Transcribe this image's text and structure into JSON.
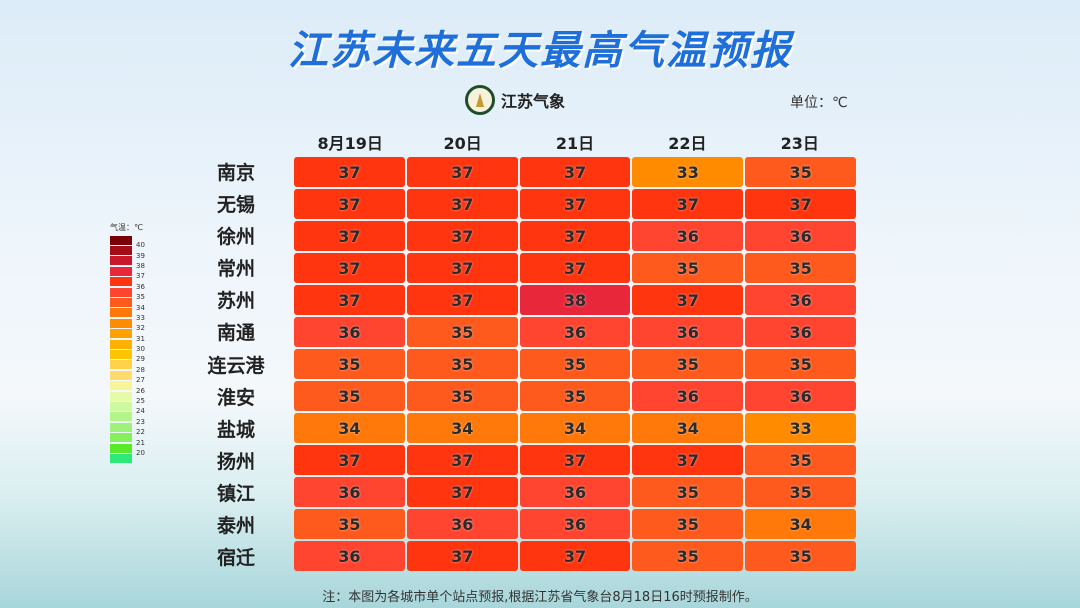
{
  "title": "江苏未来五天最高气温预报",
  "logo_text": "江苏气象",
  "unit": "单位：℃",
  "footer": "注：本图为各城市单个站点预报,根据江苏省气象台8月18日16时预报制作。",
  "chart_data": {
    "type": "heatmap",
    "title": "江苏未来五天最高气温预报",
    "columns": [
      "8月19日",
      "20日",
      "21日",
      "22日",
      "23日"
    ],
    "rows": [
      "南京",
      "无锡",
      "徐州",
      "常州",
      "苏州",
      "南通",
      "连云港",
      "淮安",
      "盐城",
      "扬州",
      "镇江",
      "泰州",
      "宿迁"
    ],
    "values": [
      [
        37,
        37,
        37,
        33,
        35
      ],
      [
        37,
        37,
        37,
        37,
        37
      ],
      [
        37,
        37,
        37,
        36,
        36
      ],
      [
        37,
        37,
        37,
        35,
        35
      ],
      [
        37,
        37,
        38,
        37,
        36
      ],
      [
        36,
        35,
        36,
        36,
        36
      ],
      [
        35,
        35,
        35,
        35,
        35
      ],
      [
        35,
        35,
        35,
        36,
        36
      ],
      [
        34,
        34,
        34,
        34,
        33
      ],
      [
        37,
        37,
        37,
        37,
        35
      ],
      [
        36,
        37,
        36,
        35,
        35
      ],
      [
        35,
        36,
        36,
        35,
        34
      ],
      [
        36,
        37,
        37,
        35,
        35
      ]
    ],
    "legend": {
      "title": "气温：℃",
      "labels": [
        "40",
        "39",
        "38",
        "37",
        "36",
        "35",
        "34",
        "33",
        "32",
        "31",
        "30",
        "29",
        "28",
        "27",
        "26",
        "25",
        "24",
        "23",
        "22",
        "21",
        "20"
      ],
      "colors": [
        "#7a0008",
        "#a50d16",
        "#c8182a",
        "#e8283a",
        "#ff3510",
        "#ff4530",
        "#ff5a1e",
        "#ff780a",
        "#ff8c00",
        "#ffa000",
        "#ffb000",
        "#ffc400",
        "#ffd24a",
        "#ffdb6e",
        "#f7f59a",
        "#e6fbaa",
        "#cdf9a0",
        "#b4f58a",
        "#9ef27a",
        "#86ef5e",
        "#5ae82a",
        "#2ee87a"
      ]
    },
    "value_colors": {
      "33": "#ff8c00",
      "34": "#ff780a",
      "35": "#ff5a1e",
      "36": "#ff4530",
      "37": "#ff3510",
      "38": "#e8283a"
    }
  }
}
